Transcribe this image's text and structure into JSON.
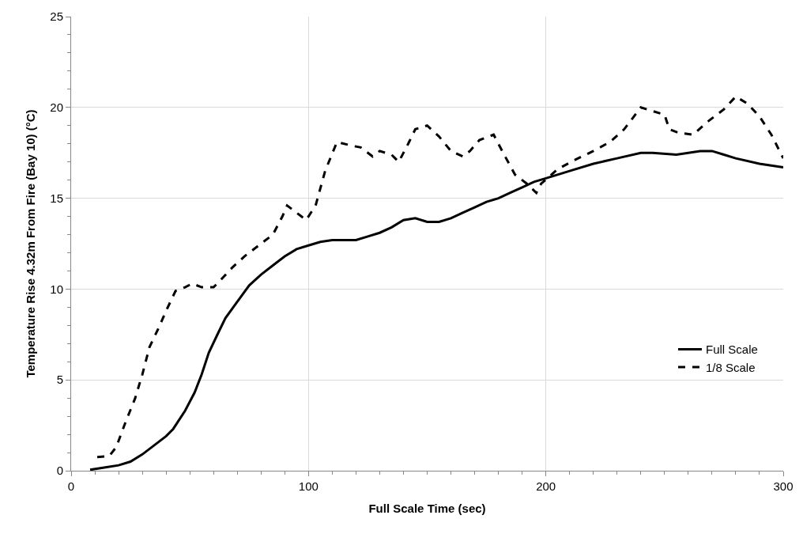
{
  "chart_data": {
    "type": "line",
    "xlabel": "Full Scale Time (sec)",
    "ylabel": "Temperature Rise 4.32m From Fire (Bay 10) (°C)",
    "xlim": [
      0,
      300
    ],
    "xticks": [
      0,
      {
        "value": 10,
        "label": null
      },
      {
        "value": 20,
        "label": null
      },
      {
        "value": 30,
        "label": null
      },
      {
        "value": 40,
        "label": null
      },
      {
        "value": 50,
        "label": null
      },
      {
        "value": 60,
        "label": null
      },
      {
        "value": 70,
        "label": null
      },
      {
        "value": 80,
        "label": null
      },
      {
        "value": 90,
        "label": null
      },
      100,
      {
        "value": 110,
        "label": null
      },
      {
        "value": 120,
        "label": null
      },
      {
        "value": 130,
        "label": null
      },
      {
        "value": 140,
        "label": null
      },
      {
        "value": 150,
        "label": null
      },
      {
        "value": 160,
        "label": null
      },
      {
        "value": 170,
        "label": null
      },
      {
        "value": 180,
        "label": null
      },
      {
        "value": 190,
        "label": null
      },
      200,
      {
        "value": 210,
        "label": null
      },
      {
        "value": 220,
        "label": null
      },
      {
        "value": 230,
        "label": null
      },
      {
        "value": 240,
        "label": null
      },
      {
        "value": 250,
        "label": null
      },
      {
        "value": 260,
        "label": null
      },
      {
        "value": 270,
        "label": null
      },
      {
        "value": 280,
        "label": null
      },
      {
        "value": 290,
        "label": null
      },
      300
    ],
    "ylim": [
      0,
      25
    ],
    "yticks": [
      0,
      {
        "value": 1,
        "label": null
      },
      {
        "value": 2,
        "label": null
      },
      {
        "value": 3,
        "label": null
      },
      {
        "value": 4,
        "label": null
      },
      5,
      {
        "value": 6,
        "label": null
      },
      {
        "value": 7,
        "label": null
      },
      {
        "value": 8,
        "label": null
      },
      {
        "value": 9,
        "label": null
      },
      10,
      {
        "value": 11,
        "label": null
      },
      {
        "value": 12,
        "label": null
      },
      {
        "value": 13,
        "label": null
      },
      {
        "value": 14,
        "label": null
      },
      15,
      {
        "value": 16,
        "label": null
      },
      {
        "value": 17,
        "label": null
      },
      {
        "value": 18,
        "label": null
      },
      {
        "value": 19,
        "label": null
      },
      20,
      {
        "value": 21,
        "label": null
      },
      {
        "value": 22,
        "label": null
      },
      {
        "value": 23,
        "label": null
      },
      {
        "value": 24,
        "label": null
      },
      25
    ],
    "grid": true,
    "legend": "bottom right",
    "series": [
      {
        "name": "Full Scale",
        "color": "#000000",
        "line_style": "solid",
        "x": [
          8,
          15,
          20,
          25,
          30,
          35,
          40,
          43,
          48,
          52,
          55,
          58,
          62,
          65,
          70,
          75,
          80,
          85,
          90,
          95,
          100,
          105,
          110,
          120,
          125,
          130,
          135,
          140,
          145,
          150,
          155,
          160,
          165,
          170,
          175,
          180,
          185,
          190,
          195,
          200,
          210,
          220,
          230,
          240,
          245,
          255,
          265,
          270,
          275,
          280,
          290,
          295,
          300
        ],
        "values": [
          0.05,
          0.2,
          0.3,
          0.5,
          0.9,
          1.4,
          1.9,
          2.3,
          3.3,
          4.3,
          5.3,
          6.5,
          7.6,
          8.4,
          9.3,
          10.2,
          10.8,
          11.3,
          11.8,
          12.2,
          12.4,
          12.6,
          12.7,
          12.7,
          12.9,
          13.1,
          13.4,
          13.8,
          13.9,
          13.7,
          13.7,
          13.9,
          14.2,
          14.5,
          14.8,
          15.0,
          15.3,
          15.6,
          15.9,
          16.1,
          16.5,
          16.9,
          17.2,
          17.5,
          17.5,
          17.4,
          17.6,
          17.6,
          17.4,
          17.2,
          16.9,
          16.8,
          16.7
        ]
      },
      {
        "name": "1/8 Scale",
        "color": "#000000",
        "line_style": "dashed",
        "x": [
          11,
          16,
          19,
          23,
          27,
          30,
          33,
          37,
          40,
          44,
          48,
          51,
          55,
          60,
          63,
          68,
          73,
          79,
          85,
          89,
          91,
          97,
          99,
          103,
          107,
          112,
          118,
          122,
          127,
          130,
          135,
          138,
          142,
          145,
          150,
          155,
          160,
          165,
          168,
          172,
          178,
          182,
          187,
          192,
          196,
          198,
          205,
          212,
          220,
          227,
          233,
          240,
          245,
          250,
          252,
          256,
          262,
          268,
          275,
          280,
          285,
          290,
          295,
          300
        ],
        "values": [
          0.75,
          0.8,
          1.3,
          2.7,
          4.0,
          5.3,
          6.8,
          7.9,
          8.8,
          9.9,
          10.1,
          10.3,
          10.1,
          10.1,
          10.5,
          11.2,
          11.8,
          12.4,
          13.0,
          14.0,
          14.6,
          14.0,
          13.8,
          14.6,
          16.5,
          18.1,
          17.9,
          17.8,
          17.3,
          17.6,
          17.4,
          17.0,
          18.0,
          18.8,
          19.0,
          18.4,
          17.6,
          17.3,
          17.6,
          18.2,
          18.5,
          17.5,
          16.3,
          15.8,
          15.3,
          15.8,
          16.6,
          17.1,
          17.6,
          18.1,
          18.8,
          20.0,
          19.8,
          19.6,
          18.8,
          18.6,
          18.5,
          19.2,
          19.9,
          20.6,
          20.2,
          19.5,
          18.5,
          17.2
        ]
      }
    ]
  }
}
